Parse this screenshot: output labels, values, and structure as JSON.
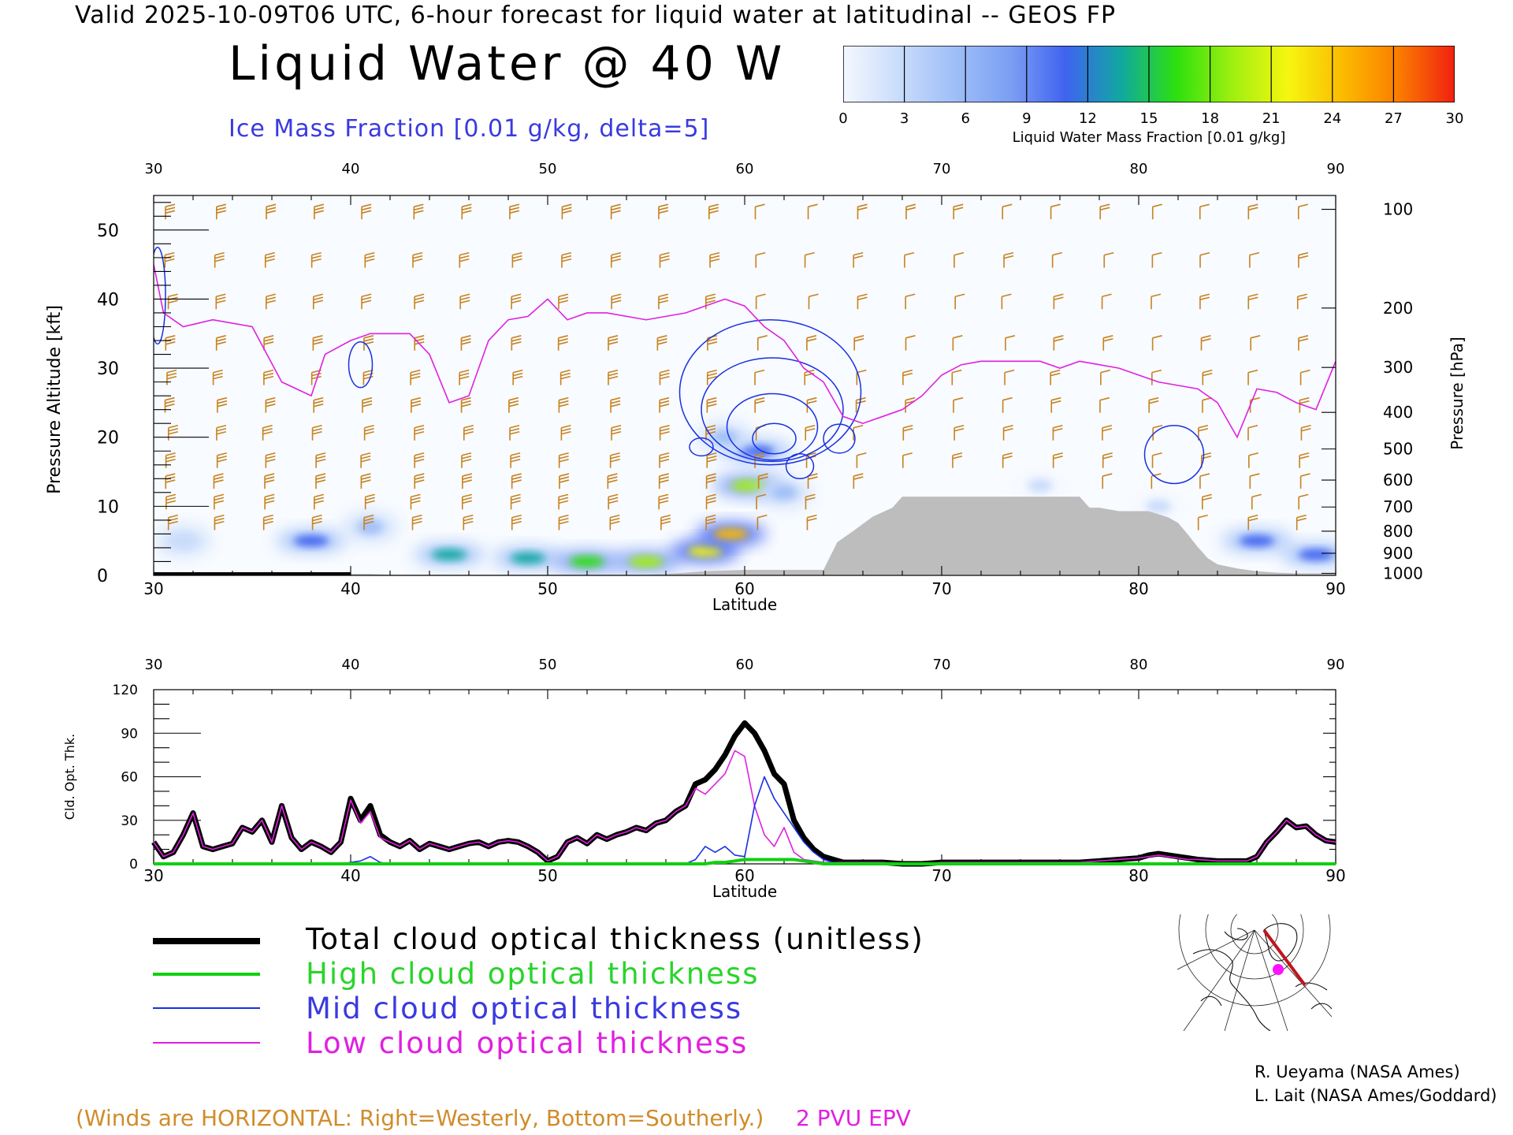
{
  "header": {
    "line": "Valid 2025-10-09T06 UTC, 6-hour forecast for liquid water at latitudinal -- GEOS FP",
    "title": "Liquid Water @ 40 W",
    "subtitle": "Ice Mass Fraction [0.01 g/kg, delta=5]"
  },
  "colorbar": {
    "ticks": [
      "0",
      "3",
      "6",
      "9",
      "12",
      "15",
      "18",
      "21",
      "24",
      "27",
      "30"
    ],
    "label": "Liquid Water Mass Fraction [0.01 g/kg]",
    "colors": [
      "#f4f8ff",
      "#c9dcfb",
      "#9fbff7",
      "#7d9ff3",
      "#3f63f0",
      "#10a8a0",
      "#2ee00e",
      "#9fef10",
      "#f6f610",
      "#fbba00",
      "#fb7c00",
      "#f02010"
    ]
  },
  "chart_data": [
    {
      "type": "heatmap",
      "title": "Liquid Water @ 40 W",
      "xlabel": "Latitude",
      "ylabel": "Pressure Altitude [kft]",
      "y2label": "Pressure [hPa]",
      "xlim": [
        30,
        90
      ],
      "ylim": [
        0,
        55
      ],
      "x_ticks": [
        "30",
        "40",
        "50",
        "60",
        "70",
        "80",
        "90"
      ],
      "y_ticks": [
        "0",
        "10",
        "20",
        "30",
        "40",
        "50"
      ],
      "pressure_ticks": [
        "100",
        "200",
        "300",
        "400",
        "500",
        "600",
        "700",
        "800",
        "900",
        "1000"
      ],
      "pressure_tick_kft": [
        53,
        38.7,
        30.1,
        23.6,
        18.3,
        13.8,
        9.9,
        6.4,
        3.2,
        0.3
      ],
      "liquid_water_blobs": [
        {
          "lat": 31.5,
          "kft": 5,
          "value": 4
        },
        {
          "lat": 38,
          "kft": 5,
          "value": 10
        },
        {
          "lat": 41,
          "kft": 7,
          "value": 5
        },
        {
          "lat": 45,
          "kft": 3,
          "value": 13
        },
        {
          "lat": 49,
          "kft": 2.5,
          "value": 14
        },
        {
          "lat": 52,
          "kft": 2,
          "value": 16
        },
        {
          "lat": 55,
          "kft": 2,
          "value": 18
        },
        {
          "lat": 58,
          "kft": 3.5,
          "value": 22
        },
        {
          "lat": 59.3,
          "kft": 6,
          "value": 24
        },
        {
          "lat": 60.2,
          "kft": 13,
          "value": 18
        },
        {
          "lat": 60.6,
          "kft": 18,
          "value": 10
        },
        {
          "lat": 59,
          "kft": 20,
          "value": 6
        },
        {
          "lat": 62,
          "kft": 12,
          "value": 5
        },
        {
          "lat": 75,
          "kft": 13,
          "value": 2
        },
        {
          "lat": 81,
          "kft": 10,
          "value": 3
        },
        {
          "lat": 86,
          "kft": 5,
          "value": 12
        },
        {
          "lat": 89,
          "kft": 3,
          "value": 10
        }
      ],
      "pvu2_line": {
        "lat": [
          30,
          30.5,
          31.5,
          33,
          35,
          36.5,
          38,
          38.7,
          40,
          41,
          43,
          44,
          45,
          46,
          47,
          48,
          49,
          50,
          51,
          52,
          53,
          55,
          57,
          59,
          60,
          61,
          62,
          63,
          64,
          65,
          66,
          67,
          68,
          69,
          70,
          71,
          72,
          73,
          74,
          75,
          76,
          77,
          78,
          79,
          80,
          81,
          82,
          83,
          84,
          85,
          86,
          87,
          88,
          89,
          90
        ],
        "kft": [
          45,
          38,
          36,
          37,
          36,
          28,
          26,
          32,
          34,
          35,
          35,
          32,
          25,
          26,
          34,
          37,
          37.5,
          40,
          37,
          38,
          38,
          37,
          38,
          40,
          39,
          36,
          34,
          30,
          28,
          23,
          22,
          23,
          24,
          26,
          29,
          30.5,
          31,
          31,
          31,
          31,
          30,
          31,
          30.5,
          30,
          29,
          28,
          27.5,
          27,
          25,
          20,
          27,
          26.5,
          25,
          24,
          31
        ]
      },
      "terrain": {
        "lat": [
          29.7,
          30,
          31,
          32,
          33,
          34,
          35,
          36,
          37,
          38,
          39,
          40,
          41,
          42,
          43,
          44,
          45,
          46,
          47,
          48,
          49,
          50,
          51,
          52,
          53,
          54,
          55,
          56,
          57,
          58,
          59,
          60,
          61,
          62,
          63,
          64,
          64.7,
          65.5,
          66.5,
          67.5,
          68,
          69,
          70,
          71,
          72,
          73,
          74,
          75,
          76,
          77,
          77.5,
          78,
          79,
          80,
          80.5,
          81.5,
          82,
          82.5,
          83,
          83.5,
          84,
          85,
          86,
          87,
          88,
          89,
          90
        ],
        "kft": [
          0,
          0.5,
          0.4,
          0.3,
          0.3,
          0.2,
          0.2,
          0.2,
          0.3,
          0.3,
          0.2,
          0.2,
          0.2,
          0.1,
          0.1,
          0.1,
          0.1,
          0.1,
          0.1,
          0.1,
          0.1,
          0.1,
          0.1,
          0.1,
          0.1,
          0.1,
          0.1,
          0.2,
          0.4,
          0.6,
          0.7,
          0.8,
          0.8,
          0.8,
          0.8,
          0.8,
          4.8,
          6.4,
          8.5,
          9.8,
          11.4,
          11.4,
          11.4,
          11.4,
          11.4,
          11.4,
          11.4,
          11.4,
          11.4,
          11.4,
          9.8,
          9.8,
          9.3,
          9.3,
          9.3,
          8.4,
          7.6,
          5.9,
          4.1,
          2.5,
          1.6,
          1.0,
          0.6,
          0.4,
          0.3,
          0.3,
          0.3
        ]
      },
      "ice_contours": [
        {
          "lat": 61.3,
          "kft": 26.5,
          "rx": 4.6,
          "ry": 10.5
        },
        {
          "lat": 61.4,
          "kft": 24,
          "rx": 3.6,
          "ry": 7.5
        },
        {
          "lat": 61.4,
          "kft": 21.5,
          "rx": 2.3,
          "ry": 4.8
        },
        {
          "lat": 61.5,
          "kft": 19.8,
          "rx": 1.1,
          "ry": 2.2
        },
        {
          "lat": 64.8,
          "kft": 19.8,
          "rx": 0.8,
          "ry": 2.1
        },
        {
          "lat": 62.8,
          "kft": 15.8,
          "rx": 0.7,
          "ry": 1.8
        },
        {
          "lat": 57.8,
          "kft": 18.6,
          "rx": 0.6,
          "ry": 1.3
        },
        {
          "lat": 40.5,
          "kft": 30.5,
          "rx": 0.6,
          "ry": 3.3
        },
        {
          "lat": 81.8,
          "kft": 17.5,
          "rx": 1.5,
          "ry": 4.2
        },
        {
          "lat": 30.2,
          "kft": 40.5,
          "rx": 0.4,
          "ry": 7
        }
      ]
    },
    {
      "type": "line",
      "xlabel": "Latitude",
      "ylabel": "Cld. Opt. Thk.",
      "xlim": [
        30,
        90
      ],
      "ylim": [
        0,
        120
      ],
      "x_ticks": [
        "30",
        "40",
        "50",
        "60",
        "70",
        "80",
        "90"
      ],
      "y_ticks": [
        "0",
        "30",
        "60",
        "90",
        "120"
      ],
      "x": [
        30,
        30.5,
        31,
        31.5,
        32,
        32.5,
        33,
        33.5,
        34,
        34.5,
        35,
        35.5,
        36,
        36.5,
        37,
        37.5,
        38,
        38.5,
        39,
        39.5,
        40,
        40.5,
        41,
        41.5,
        42,
        42.5,
        43,
        43.5,
        44,
        44.5,
        45,
        45.5,
        46,
        46.5,
        47,
        47.5,
        48,
        48.5,
        49,
        49.5,
        50,
        50.5,
        51,
        51.5,
        52,
        52.5,
        53,
        53.5,
        54,
        54.5,
        55,
        55.5,
        56,
        56.5,
        57,
        57.5,
        58,
        58.5,
        59,
        59.5,
        60,
        60.5,
        61,
        61.5,
        62,
        62.5,
        63,
        63.5,
        64,
        64.5,
        65,
        66,
        67,
        68,
        69,
        70,
        71,
        72,
        73,
        74,
        75,
        76,
        77,
        78,
        79,
        80,
        80.5,
        81,
        81.5,
        82,
        82.5,
        83,
        84,
        85,
        85.5,
        86,
        86.5,
        87,
        87.5,
        88,
        88.5,
        89,
        89.5,
        90
      ],
      "series": [
        {
          "name": "Total cloud optical thickness (unitless)",
          "color": "#000000",
          "values": [
            15,
            5,
            8,
            20,
            35,
            12,
            10,
            12,
            14,
            25,
            22,
            30,
            15,
            40,
            18,
            10,
            15,
            12,
            8,
            15,
            45,
            30,
            40,
            20,
            15,
            12,
            16,
            10,
            14,
            12,
            10,
            12,
            14,
            15,
            12,
            15,
            16,
            15,
            12,
            8,
            2,
            5,
            15,
            18,
            14,
            20,
            17,
            20,
            22,
            25,
            23,
            28,
            30,
            36,
            40,
            55,
            58,
            65,
            75,
            88,
            97,
            90,
            78,
            62,
            55,
            30,
            18,
            10,
            5,
            3,
            1,
            1,
            1,
            0,
            0,
            1,
            1,
            1,
            1,
            1,
            1,
            1,
            1,
            2,
            3,
            4,
            6,
            7,
            6,
            5,
            4,
            3,
            2,
            2,
            2,
            5,
            15,
            22,
            30,
            25,
            26,
            20,
            16,
            15
          ]
        },
        {
          "name": "High cloud optical thickness",
          "color": "#10d010",
          "values": [
            0,
            0,
            0,
            0,
            0,
            0,
            0,
            0,
            0,
            0,
            0,
            0,
            0,
            0,
            0,
            0,
            0,
            0,
            0,
            0,
            0,
            0,
            0,
            0,
            0,
            0,
            0,
            0,
            0,
            0,
            0,
            0,
            0,
            0,
            0,
            0,
            0,
            0,
            0,
            0,
            0,
            0,
            0,
            0,
            0,
            0,
            0,
            0,
            0,
            0,
            0,
            0,
            0,
            0,
            0,
            0,
            0,
            1,
            1,
            2,
            3,
            3,
            3,
            3,
            3,
            3,
            2,
            1,
            0,
            0,
            0,
            0,
            0,
            0,
            0,
            0,
            0,
            0,
            0,
            0,
            0,
            0,
            0,
            0,
            0,
            0,
            0,
            0,
            0,
            0,
            0,
            0,
            0,
            0,
            0,
            0,
            0,
            0,
            0,
            0,
            0,
            0,
            0,
            0
          ]
        },
        {
          "name": "Mid cloud optical thickness",
          "color": "#1a30e0",
          "values": [
            0,
            0,
            0,
            0,
            0,
            0,
            0,
            0,
            0,
            0,
            0,
            0,
            0,
            0,
            0,
            0,
            0,
            0,
            0,
            0,
            1,
            2,
            5,
            1,
            0,
            0,
            0,
            0,
            0,
            0,
            0,
            0,
            0,
            0,
            0,
            0,
            0,
            0,
            0,
            0,
            0,
            0,
            0,
            0,
            0,
            0,
            0,
            0,
            0,
            0,
            0,
            0,
            0,
            0,
            0,
            3,
            12,
            8,
            12,
            6,
            5,
            40,
            60,
            45,
            35,
            25,
            15,
            8,
            3,
            1,
            0,
            0,
            0,
            0,
            0,
            0,
            0,
            0,
            0,
            0,
            0,
            0,
            0,
            0,
            0,
            0,
            0,
            0,
            0,
            0,
            0,
            0,
            0,
            0,
            0,
            0,
            0,
            0,
            0,
            0,
            0,
            0,
            0,
            0
          ]
        },
        {
          "name": "Low cloud optical thickness",
          "color": "#e020e0",
          "values": [
            15,
            5,
            8,
            20,
            35,
            12,
            10,
            12,
            14,
            25,
            22,
            30,
            15,
            40,
            18,
            10,
            15,
            12,
            8,
            15,
            44,
            28,
            36,
            18,
            15,
            12,
            16,
            10,
            14,
            12,
            10,
            12,
            14,
            15,
            12,
            15,
            16,
            15,
            12,
            8,
            2,
            5,
            15,
            18,
            14,
            20,
            17,
            20,
            22,
            25,
            23,
            28,
            30,
            36,
            40,
            52,
            48,
            55,
            62,
            78,
            74,
            40,
            20,
            12,
            25,
            8,
            3,
            2,
            1,
            1,
            1,
            1,
            1,
            0,
            0,
            1,
            1,
            1,
            1,
            1,
            1,
            1,
            1,
            2,
            3,
            4,
            5,
            6,
            5,
            4,
            3,
            3,
            2,
            2,
            2,
            5,
            15,
            22,
            30,
            25,
            26,
            20,
            16,
            15
          ]
        }
      ]
    }
  ],
  "legend": [
    {
      "label": "Total cloud optical thickness (unitless)",
      "color": "#000000",
      "text_color": "#000000",
      "weight": 8
    },
    {
      "label": "High cloud optical thickness",
      "color": "#10d010",
      "text_color": "#2ad42a",
      "weight": 4
    },
    {
      "label": "Mid cloud optical thickness",
      "color": "#1a30e0",
      "text_color": "#3a3ae0",
      "weight": 2
    },
    {
      "label": "Low cloud optical thickness",
      "color": "#e020e0",
      "text_color": "#e020e0",
      "weight": 2
    }
  ],
  "notes": {
    "winds": "(Winds are HORIZONTAL: Right=Westerly, Bottom=Southerly.)",
    "pvu": "2 PVU EPV",
    "credit_1": "R. Ueyama (NASA Ames)",
    "credit_2": "L. Lait (NASA Ames/Goddard)"
  },
  "colors": {
    "barbs": "#c8821e",
    "pvu": "#e020e0",
    "ice": "#1a30e0",
    "terrain": "#bdbdbd",
    "track": "#c0141e",
    "marker": "#ff10ff"
  }
}
